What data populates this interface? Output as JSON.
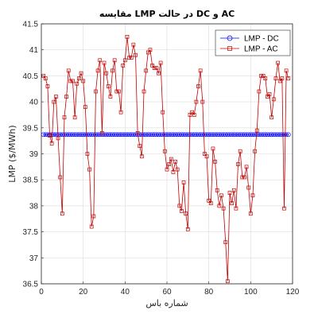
{
  "chart_data": {
    "type": "line",
    "title": "مقایسه LMP در حالت DC و AC",
    "xlabel": "شماره باس",
    "ylabel": "LMP ($/MWh)",
    "xlim": [
      0,
      120
    ],
    "ylim": [
      36.5,
      41.5
    ],
    "xticks": [
      0,
      20,
      40,
      60,
      80,
      100,
      120
    ],
    "yticks": [
      36.5,
      37,
      37.5,
      38,
      38.5,
      39,
      39.5,
      40,
      40.5,
      41,
      41.5
    ],
    "grid": true,
    "legend_position": "top-right",
    "colors": {
      "dc": "#0000ff",
      "ac": "#c00000"
    },
    "series": [
      {
        "name": "LMP - DC",
        "marker": "circle",
        "x": [
          1,
          2,
          3,
          4,
          5,
          6,
          7,
          8,
          9,
          10,
          11,
          12,
          13,
          14,
          15,
          16,
          17,
          18,
          19,
          20,
          21,
          22,
          23,
          24,
          25,
          26,
          27,
          28,
          29,
          30,
          31,
          32,
          33,
          34,
          35,
          36,
          37,
          38,
          39,
          40,
          41,
          42,
          43,
          44,
          45,
          46,
          47,
          48,
          49,
          50,
          51,
          52,
          53,
          54,
          55,
          56,
          57,
          58,
          59,
          60,
          61,
          62,
          63,
          64,
          65,
          66,
          67,
          68,
          69,
          70,
          71,
          72,
          73,
          74,
          75,
          76,
          77,
          78,
          79,
          80,
          81,
          82,
          83,
          84,
          85,
          86,
          87,
          88,
          89,
          90,
          91,
          92,
          93,
          94,
          95,
          96,
          97,
          98,
          99,
          100,
          101,
          102,
          103,
          104,
          105,
          106,
          107,
          108,
          109,
          110,
          111,
          112,
          113,
          114,
          115,
          116,
          117,
          118
        ],
        "values": [
          39.37,
          39.37,
          39.37,
          39.37,
          39.37,
          39.37,
          39.37,
          39.37,
          39.37,
          39.37,
          39.37,
          39.37,
          39.37,
          39.37,
          39.37,
          39.37,
          39.37,
          39.37,
          39.37,
          39.37,
          39.37,
          39.37,
          39.37,
          39.37,
          39.37,
          39.37,
          39.37,
          39.37,
          39.37,
          39.37,
          39.37,
          39.37,
          39.37,
          39.37,
          39.37,
          39.37,
          39.37,
          39.37,
          39.37,
          39.37,
          39.37,
          39.37,
          39.37,
          39.37,
          39.37,
          39.37,
          39.37,
          39.37,
          39.37,
          39.37,
          39.37,
          39.37,
          39.37,
          39.37,
          39.37,
          39.37,
          39.37,
          39.37,
          39.37,
          39.37,
          39.37,
          39.37,
          39.37,
          39.37,
          39.37,
          39.37,
          39.37,
          39.37,
          39.37,
          39.37,
          39.37,
          39.37,
          39.37,
          39.37,
          39.37,
          39.37,
          39.37,
          39.37,
          39.37,
          39.37,
          39.37,
          39.37,
          39.37,
          39.37,
          39.37,
          39.37,
          39.37,
          39.37,
          39.37,
          39.37,
          39.37,
          39.37,
          39.37,
          39.37,
          39.37,
          39.37,
          39.37,
          39.37,
          39.37,
          39.37,
          39.37,
          39.37,
          39.37,
          39.37,
          39.37,
          39.37,
          39.37,
          39.37,
          39.37,
          39.37,
          39.37,
          39.37,
          39.37,
          39.37,
          39.37,
          39.37,
          39.37,
          39.37
        ]
      },
      {
        "name": "LMP - AC",
        "marker": "square",
        "x": [
          1,
          2,
          3,
          4,
          5,
          6,
          7,
          8,
          9,
          10,
          11,
          12,
          13,
          14,
          15,
          16,
          17,
          18,
          19,
          20,
          21,
          22,
          23,
          24,
          25,
          26,
          27,
          28,
          29,
          30,
          31,
          32,
          33,
          34,
          35,
          36,
          37,
          38,
          39,
          40,
          41,
          42,
          43,
          44,
          45,
          46,
          47,
          48,
          49,
          50,
          51,
          52,
          53,
          54,
          55,
          56,
          57,
          58,
          59,
          60,
          61,
          62,
          63,
          64,
          65,
          66,
          67,
          68,
          69,
          70,
          71,
          72,
          73,
          74,
          75,
          76,
          77,
          78,
          79,
          80,
          81,
          82,
          83,
          84,
          85,
          86,
          87,
          88,
          89,
          90,
          91,
          92,
          93,
          94,
          95,
          96,
          97,
          98,
          99,
          100,
          101,
          102,
          103,
          104,
          105,
          106,
          107,
          108,
          109,
          110,
          111,
          112,
          113,
          114,
          115,
          116,
          117,
          118
        ],
        "values": [
          40.5,
          40.45,
          40.3,
          39.35,
          39.2,
          40.0,
          40.1,
          39.3,
          38.55,
          37.85,
          39.7,
          40.1,
          40.6,
          40.4,
          40.4,
          39.7,
          40.35,
          40.45,
          40.55,
          40.4,
          39.9,
          39.0,
          38.7,
          37.6,
          37.8,
          40.2,
          40.6,
          40.8,
          39.4,
          40.75,
          40.55,
          40.3,
          40.1,
          40.6,
          40.8,
          40.2,
          40.2,
          39.8,
          40.7,
          40.8,
          41.25,
          40.85,
          40.85,
          41.1,
          40.9,
          39.4,
          39.15,
          38.95,
          40.2,
          40.6,
          40.95,
          41.0,
          40.7,
          40.65,
          40.65,
          40.55,
          40.75,
          39.8,
          39.05,
          38.7,
          38.8,
          38.9,
          38.65,
          38.85,
          38.7,
          38.0,
          37.9,
          38.45,
          37.85,
          37.55,
          39.75,
          39.8,
          39.75,
          40.0,
          40.3,
          40.6,
          40.0,
          39.0,
          38.95,
          38.1,
          38.05,
          39.1,
          38.85,
          38.3,
          38.0,
          38.2,
          37.95,
          37.3,
          36.55,
          38.25,
          38.05,
          38.3,
          37.95,
          38.8,
          39.05,
          38.55,
          38.55,
          38.75,
          38.35,
          37.85,
          38.2,
          39.05,
          39.45,
          40.2,
          40.5,
          40.5,
          40.45,
          40.1,
          40.15,
          39.7,
          40.05,
          40.45,
          40.75,
          40.4,
          40.45,
          37.95,
          40.6,
          40.45
        ]
      }
    ]
  }
}
